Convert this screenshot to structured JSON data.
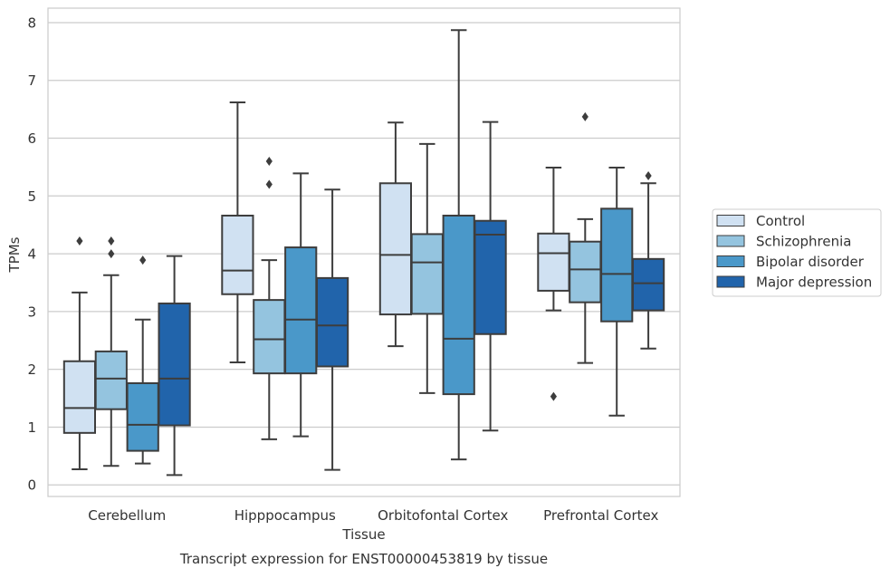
{
  "chart_data": {
    "type": "boxplot",
    "xlabel": "Tissue",
    "ylabel": "TPMs",
    "caption": "Transcript expression for ENST00000453819 by tissue",
    "ylim": [
      -0.2,
      8.25
    ],
    "yticks": [
      0,
      1,
      2,
      3,
      4,
      5,
      6,
      7,
      8
    ],
    "grid": "horizontal",
    "legend_position": "right",
    "categories": [
      "Cerebellum",
      "Hipppocampus",
      "Orbitofontal Cortex",
      "Prefrontal Cortex"
    ],
    "series": [
      {
        "name": "Control",
        "color": "#d0e1f2",
        "boxes": [
          {
            "whislo": 0.27,
            "q1": 0.9,
            "med": 1.33,
            "q3": 2.14,
            "whishi": 3.33,
            "fliers": [
              4.22
            ]
          },
          {
            "whislo": 2.12,
            "q1": 3.3,
            "med": 3.71,
            "q3": 4.66,
            "whishi": 6.62,
            "fliers": []
          },
          {
            "whislo": 2.4,
            "q1": 2.95,
            "med": 3.98,
            "q3": 5.22,
            "whishi": 6.27,
            "fliers": []
          },
          {
            "whislo": 3.02,
            "q1": 3.36,
            "med": 4.01,
            "q3": 4.35,
            "whishi": 5.49,
            "fliers": [
              1.53
            ]
          }
        ]
      },
      {
        "name": "Schizophrenia",
        "color": "#94c4df",
        "boxes": [
          {
            "whislo": 0.33,
            "q1": 1.31,
            "med": 1.84,
            "q3": 2.31,
            "whishi": 3.63,
            "fliers": [
              4.22,
              4.0
            ]
          },
          {
            "whislo": 0.79,
            "q1": 1.93,
            "med": 2.52,
            "q3": 3.2,
            "whishi": 3.89,
            "fliers": [
              5.6,
              5.2
            ]
          },
          {
            "whislo": 1.59,
            "q1": 2.96,
            "med": 3.85,
            "q3": 4.34,
            "whishi": 5.9,
            "fliers": []
          },
          {
            "whislo": 2.11,
            "q1": 3.16,
            "med": 3.73,
            "q3": 4.21,
            "whishi": 4.6,
            "fliers": [
              6.37
            ]
          }
        ]
      },
      {
        "name": "Bipolar disorder",
        "color": "#4a98c9",
        "boxes": [
          {
            "whislo": 0.37,
            "q1": 0.59,
            "med": 1.04,
            "q3": 1.76,
            "whishi": 2.86,
            "fliers": [
              3.89
            ]
          },
          {
            "whislo": 0.84,
            "q1": 1.93,
            "med": 2.86,
            "q3": 4.11,
            "whishi": 5.39,
            "fliers": []
          },
          {
            "whislo": 0.44,
            "q1": 1.57,
            "med": 2.53,
            "q3": 4.66,
            "whishi": 7.87,
            "fliers": []
          },
          {
            "whislo": 1.2,
            "q1": 2.83,
            "med": 3.65,
            "q3": 4.78,
            "whishi": 5.49,
            "fliers": []
          }
        ]
      },
      {
        "name": "Major depression",
        "color": "#2164ab",
        "boxes": [
          {
            "whislo": 0.17,
            "q1": 1.03,
            "med": 1.84,
            "q3": 3.14,
            "whishi": 3.96,
            "fliers": []
          },
          {
            "whislo": 0.26,
            "q1": 2.05,
            "med": 2.76,
            "q3": 3.58,
            "whishi": 5.11,
            "fliers": []
          },
          {
            "whislo": 0.94,
            "q1": 2.61,
            "med": 4.33,
            "q3": 4.57,
            "whishi": 6.28,
            "fliers": []
          },
          {
            "whislo": 2.36,
            "q1": 3.02,
            "med": 3.49,
            "q3": 3.91,
            "whishi": 5.22,
            "fliers": [
              5.35
            ]
          }
        ]
      }
    ]
  }
}
